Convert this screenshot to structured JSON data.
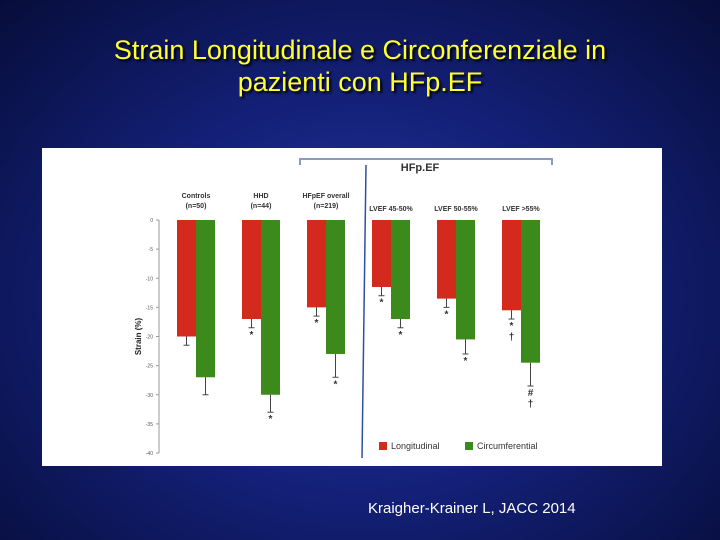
{
  "slide": {
    "title_line1": "Strain Longitudinale e Circonferenziale in",
    "title_line2": "pazienti con HFp.EF",
    "citation": "Kraigher-Krainer L, JACC 2014"
  },
  "chart_data": {
    "type": "bar",
    "title": "",
    "group_bracket_label": "HFp.EF",
    "categories": [
      {
        "line1": "Controls",
        "line2": "(n=50)"
      },
      {
        "line1": "HHD",
        "line2": "(n=44)"
      },
      {
        "line1": "HFpEF overall",
        "line2": "(n=219)"
      },
      {
        "line1": "LVEF 45-50%",
        "line2": ""
      },
      {
        "line1": "LVEF 50-55%",
        "line2": ""
      },
      {
        "line1": "LVEF >55%",
        "line2": ""
      }
    ],
    "ylabel": "Strain (%)",
    "ylim": [
      -40,
      0
    ],
    "yticks": [
      0,
      -5,
      -10,
      -15,
      -20,
      -25,
      -30,
      -35,
      -40
    ],
    "grid": false,
    "legend_position": "bottom-right",
    "series": [
      {
        "name": "Longitudinal",
        "color": "#d42a1e",
        "values": [
          -20,
          -17,
          -15,
          -11.5,
          -13.5,
          -15.5
        ],
        "error": [
          1.5,
          1.5,
          1.5,
          1.5,
          1.5,
          1.5
        ],
        "markers": [
          "",
          "*",
          "*",
          "*",
          "*",
          "*†"
        ]
      },
      {
        "name": "Circumferential",
        "color": "#3d8a1c",
        "values": [
          -27,
          -30,
          -23,
          -17,
          -20.5,
          -24.5
        ],
        "error": [
          3,
          3,
          4,
          1.5,
          2.5,
          4
        ],
        "markers": [
          "",
          "*",
          "*",
          "*",
          "*",
          "#†"
        ]
      }
    ]
  }
}
